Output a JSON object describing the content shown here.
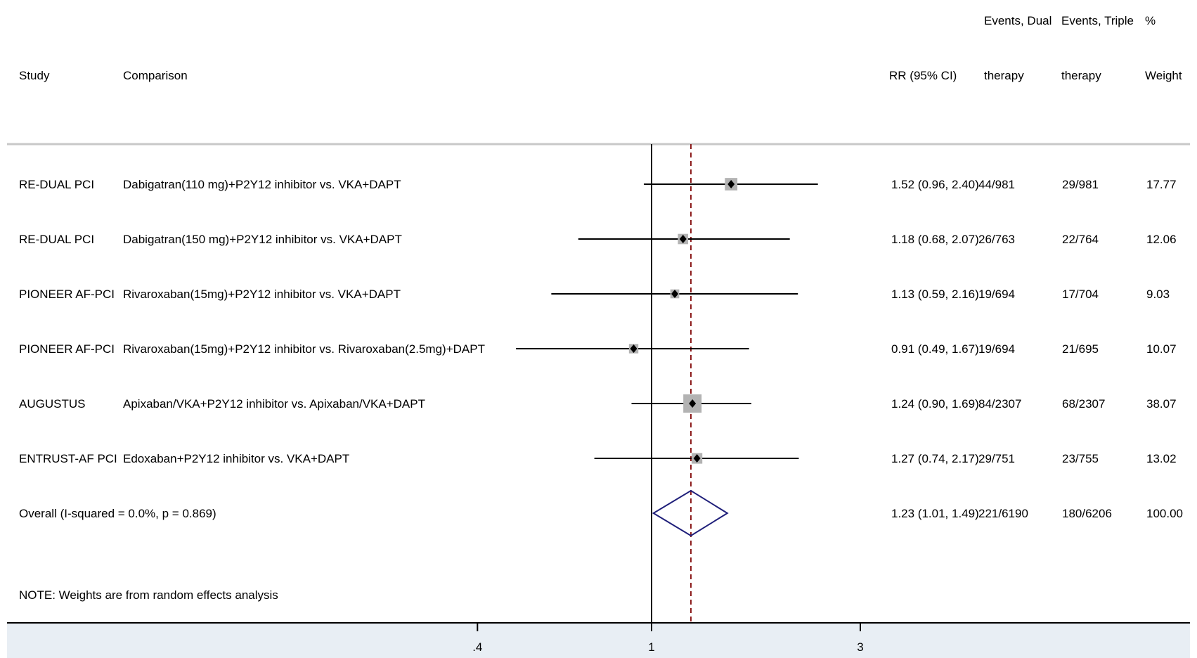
{
  "chart_data": {
    "type": "forest",
    "columns": {
      "study": "Study",
      "comparison": "Comparison",
      "rr": "RR (95% CI)",
      "events_dual_1": "Events, Dual",
      "events_dual_2": "therapy",
      "events_triple_1": "Events, Triple",
      "events_triple_2": "therapy",
      "weight_1": "%",
      "weight_2": "Weight"
    },
    "studies": [
      {
        "study": "RE-DUAL PCI",
        "comparison": "Dabigatran(110 mg)+P2Y12 inhibitor vs. VKA+DAPT",
        "rr": 1.52,
        "lo": 0.96,
        "hi": 2.4,
        "rr_text": "1.52 (0.96, 2.40)",
        "dual": "44/981",
        "triple": "29/981",
        "weight": "17.77",
        "w": 17.77
      },
      {
        "study": "RE-DUAL PCI",
        "comparison": "Dabigatran(150 mg)+P2Y12 inhibitor vs. VKA+DAPT",
        "rr": 1.18,
        "lo": 0.68,
        "hi": 2.07,
        "rr_text": "1.18 (0.68, 2.07)",
        "dual": "26/763",
        "triple": "22/764",
        "weight": "12.06",
        "w": 12.06
      },
      {
        "study": "PIONEER AF-PCI",
        "comparison": "Rivaroxaban(15mg)+P2Y12 inhibitor vs. VKA+DAPT",
        "rr": 1.13,
        "lo": 0.59,
        "hi": 2.16,
        "rr_text": "1.13 (0.59, 2.16)",
        "dual": "19/694",
        "triple": "17/704",
        "weight": "9.03",
        "w": 9.03
      },
      {
        "study": "PIONEER AF-PCI",
        "comparison": "Rivaroxaban(15mg)+P2Y12 inhibitor vs. Rivaroxaban(2.5mg)+DAPT",
        "rr": 0.91,
        "lo": 0.49,
        "hi": 1.67,
        "rr_text": "0.91 (0.49, 1.67)",
        "dual": "19/694",
        "triple": "21/695",
        "weight": "10.07",
        "w": 10.07
      },
      {
        "study": "AUGUSTUS",
        "comparison": "Apixaban/VKA+P2Y12 inhibitor vs. Apixaban/VKA+DAPT",
        "rr": 1.24,
        "lo": 0.9,
        "hi": 1.69,
        "rr_text": "1.24 (0.90, 1.69)",
        "dual": "84/2307",
        "triple": "68/2307",
        "weight": "38.07",
        "w": 38.07
      },
      {
        "study": "ENTRUST-AF PCI",
        "comparison": "Edoxaban+P2Y12 inhibitor vs. VKA+DAPT",
        "rr": 1.27,
        "lo": 0.74,
        "hi": 2.17,
        "rr_text": "1.27 (0.74, 2.17)",
        "dual": "29/751",
        "triple": "23/755",
        "weight": "13.02",
        "w": 13.02
      }
    ],
    "overall": {
      "label": "Overall  (I-squared = 0.0%, p = 0.869)",
      "rr": 1.23,
      "lo": 1.01,
      "hi": 1.49,
      "rr_text": "1.23 (1.01, 1.49)",
      "dual": "221/6190",
      "triple": "180/6206",
      "weight": "100.00"
    },
    "note": "NOTE: Weights are from random effects analysis",
    "x_axis": {
      "scale": "log",
      "ticks": [
        0.4,
        1,
        3
      ],
      "tick_labels": [
        ".4",
        "1",
        "3"
      ],
      "range": [
        0.4,
        3
      ]
    },
    "null_line": 1,
    "colors": {
      "ci_line": "#000000",
      "box": "#b3b3b3",
      "point": "#000000",
      "diamond": "#1f1f7a",
      "pooled_line": "#8b1a1a",
      "panel": "#e8eef4",
      "rule": "#c8c8c8"
    }
  }
}
